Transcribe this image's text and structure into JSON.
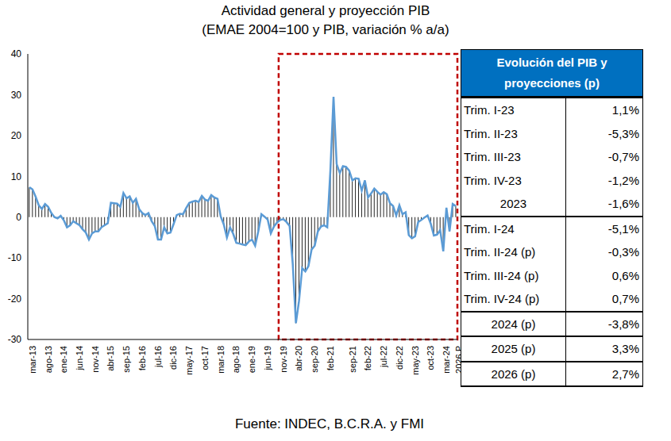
{
  "chart_data": {
    "type": "bar",
    "title": "Actividad general y proyección PIB",
    "subtitle": "(EMAE 2004=100 y PIB, variación % a/a)",
    "source": "Fuente: INDEC, B.C.R.A. y FMI",
    "categories": [
      "mar-13",
      null,
      null,
      null,
      null,
      "ago-13",
      null,
      null,
      null,
      null,
      "ene-14",
      null,
      null,
      null,
      null,
      "jun-14",
      null,
      null,
      null,
      null,
      "nov-14",
      null,
      null,
      null,
      null,
      "abr-15",
      null,
      null,
      null,
      null,
      "sep-15",
      null,
      null,
      null,
      null,
      "feb-16",
      null,
      null,
      null,
      null,
      "jul-16",
      null,
      null,
      null,
      null,
      "dic-16",
      null,
      null,
      null,
      null,
      "may-17",
      null,
      null,
      null,
      null,
      "oct-17",
      null,
      null,
      null,
      null,
      "mar-18",
      null,
      null,
      null,
      null,
      "ago-18",
      null,
      null,
      null,
      null,
      "ene-19",
      null,
      null,
      null,
      null,
      "jun-19",
      null,
      null,
      null,
      null,
      "nov-19",
      null,
      null,
      null,
      null,
      "abr-20",
      null,
      null,
      null,
      null,
      "sep-20",
      null,
      null,
      null,
      null,
      "feb-21",
      null,
      null,
      null,
      null,
      null,
      null,
      "sep-21",
      null,
      null,
      null,
      null,
      "feb-22",
      null,
      null,
      null,
      null,
      "jul-22",
      null,
      null,
      null,
      null,
      "dic-22",
      null,
      null,
      null,
      null,
      "may-23",
      null,
      null,
      null,
      null,
      "oct-23",
      null,
      null,
      null,
      null,
      "mar-24",
      null,
      null,
      null,
      "2026 P"
    ],
    "series": [
      {
        "type": "bar",
        "color": "#262626",
        "values": [
          7.3,
          6.8,
          5.0,
          2.9,
          2.0,
          3.2,
          2.5,
          1.0,
          0.0,
          -0.3,
          0.3,
          -0.8,
          -2.5,
          -2.0,
          -1.0,
          -1.5,
          -2.0,
          -3.0,
          -3.8,
          -5.5,
          -4.0,
          -3.5,
          -3.5,
          -2.5,
          -2.0,
          -1.5,
          3.5,
          3.4,
          3.3,
          2.5,
          5.9,
          4.6,
          5.1,
          3.5,
          4.5,
          2.0,
          1.0,
          0.5,
          1.0,
          -1.0,
          -2.2,
          -5.5,
          -5.5,
          -2.5,
          -4.0,
          -3.8,
          -1.7,
          0.5,
          0.8,
          0.7,
          2.2,
          3.5,
          3.8,
          4.0,
          3.7,
          5.2,
          4.3,
          4.0,
          5.4,
          4.8,
          4.5,
          0.2,
          -1.8,
          -5.0,
          -2.5,
          -4.1,
          -6.3,
          -6.5,
          -6.7,
          -6.9,
          -6.0,
          -5.5,
          -7.0,
          -3.5,
          0.7,
          0.1,
          -0.6,
          -4.0,
          -2.3,
          -1.3,
          -0.7,
          -0.5,
          -1.2,
          -2.2,
          -11.5,
          -26.0,
          -20.5,
          -12.5,
          -13.3,
          -12.0,
          -8.0,
          -7.0,
          -3.5,
          -2.3,
          -2.0,
          -2.5,
          11.5,
          29.5,
          13.0,
          10.8,
          12.5,
          12.3,
          11.4,
          9.0,
          9.5,
          9.4,
          6.5,
          9.0,
          4.8,
          5.8,
          7.0,
          6.2,
          5.5,
          6.1,
          5.6,
          3.4,
          2.7,
          0.4,
          2.9,
          0.7,
          1.2,
          -4.4,
          -5.2,
          -4.7,
          -1.2,
          -0.7,
          -0.1,
          0.4,
          -1.6,
          -4.5,
          -4.3,
          -3.2,
          -8.4,
          2.3,
          -3.5,
          3.2,
          2.7
        ]
      },
      {
        "type": "line",
        "color": "#5b9bd5",
        "values": [
          7.3,
          6.8,
          5.0,
          2.9,
          2.0,
          3.2,
          2.5,
          1.0,
          0.0,
          -0.3,
          0.3,
          -0.8,
          -2.5,
          -2.0,
          -1.0,
          -1.5,
          -2.0,
          -3.0,
          -3.8,
          -5.5,
          -4.0,
          -3.5,
          -3.5,
          -2.5,
          -2.0,
          -1.5,
          3.5,
          3.4,
          3.3,
          2.5,
          5.9,
          4.6,
          5.1,
          3.5,
          4.5,
          2.0,
          1.0,
          0.5,
          1.0,
          -1.0,
          -2.2,
          -5.5,
          -5.5,
          -2.5,
          -4.0,
          -3.8,
          -1.7,
          0.5,
          0.8,
          0.7,
          2.2,
          3.5,
          3.8,
          4.0,
          3.7,
          5.2,
          4.3,
          4.0,
          5.4,
          4.8,
          4.5,
          0.2,
          -1.8,
          -5.0,
          -2.5,
          -4.1,
          -6.3,
          -6.5,
          -6.7,
          -6.9,
          -6.0,
          -5.5,
          -7.0,
          -3.5,
          0.7,
          0.1,
          -0.6,
          -4.0,
          -2.3,
          -1.3,
          -0.7,
          -0.5,
          -1.2,
          -2.2,
          -11.5,
          -26.0,
          -20.5,
          -12.5,
          -13.3,
          -12.0,
          -8.0,
          -7.0,
          -3.5,
          -2.3,
          -2.0,
          -2.5,
          11.5,
          29.5,
          13.0,
          10.8,
          12.5,
          12.3,
          11.4,
          9.0,
          9.5,
          9.4,
          6.5,
          9.0,
          4.8,
          5.8,
          7.0,
          6.2,
          5.5,
          6.1,
          5.6,
          3.4,
          2.7,
          0.4,
          2.9,
          0.7,
          1.2,
          -4.4,
          -5.2,
          -4.7,
          -1.2,
          -0.7,
          -0.1,
          0.4,
          -1.6,
          -4.5,
          -4.3,
          -3.2,
          -8.4,
          2.3,
          -3.5,
          3.2,
          2.7
        ]
      }
    ],
    "ylim": [
      -30,
      40
    ],
    "yticks": [
      -30,
      -20,
      -10,
      0,
      10,
      20,
      30,
      40
    ],
    "grid": false,
    "highlight": {
      "x": [
        80,
        136
      ],
      "color": "#c00000",
      "line_style": "dashed"
    }
  },
  "table": {
    "header": "Evolución del PIB y proyecciones (p)",
    "sections": [
      [
        [
          "Trim. I-23",
          "1,1%"
        ],
        [
          "Trim. II-23",
          "-5,3%"
        ],
        [
          "Trim. III-23",
          "-0,7%"
        ],
        [
          "Trim. IV-23",
          "-1,2%"
        ],
        [
          "2023",
          "-1,6%"
        ]
      ],
      [
        [
          "Trim. I-24",
          "-5,1%"
        ],
        [
          "Trim. II-24 (p)",
          "-0,3%"
        ],
        [
          "Trim. III-24 (p)",
          "0,6%"
        ],
        [
          "Trim. IV-24 (p)",
          "0,7%"
        ]
      ],
      [
        [
          "2024 (p)",
          "-3,8%"
        ]
      ],
      [
        [
          "2025 (p)",
          "3,3%"
        ]
      ],
      [
        [
          "2026 (p)",
          "2,7%"
        ]
      ]
    ]
  }
}
